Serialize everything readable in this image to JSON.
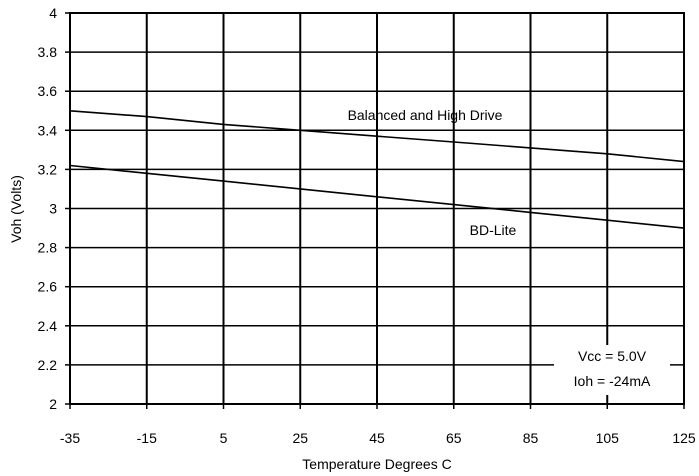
{
  "chart_data": {
    "type": "line",
    "xlabel": "Temperature Degrees C",
    "ylabel": "Voh (Volts)",
    "xlim": [
      -35,
      125
    ],
    "ylim": [
      2,
      4
    ],
    "xticks": [
      "-35",
      "-15",
      "5",
      "25",
      "45",
      "65",
      "85",
      "105",
      "125"
    ],
    "yticks": [
      "2",
      "2.2",
      "2.4",
      "2.6",
      "2.8",
      "3",
      "3.2",
      "3.4",
      "3.6",
      "3.8",
      "4"
    ],
    "grid": true,
    "series": [
      {
        "name": "Balanced and High Drive",
        "x": [
          -35,
          -15,
          5,
          25,
          45,
          65,
          85,
          105,
          125
        ],
        "y": [
          3.5,
          3.47,
          3.43,
          3.4,
          3.37,
          3.34,
          3.31,
          3.28,
          3.24
        ]
      },
      {
        "name": "BD-Lite",
        "x": [
          -35,
          -15,
          5,
          25,
          45,
          65,
          85,
          105,
          125
        ],
        "y": [
          3.22,
          3.18,
          3.14,
          3.1,
          3.06,
          3.02,
          2.98,
          2.94,
          2.9
        ]
      }
    ],
    "annotations": [
      "Vcc = 5.0V",
      "Ioh = -24mA"
    ]
  }
}
